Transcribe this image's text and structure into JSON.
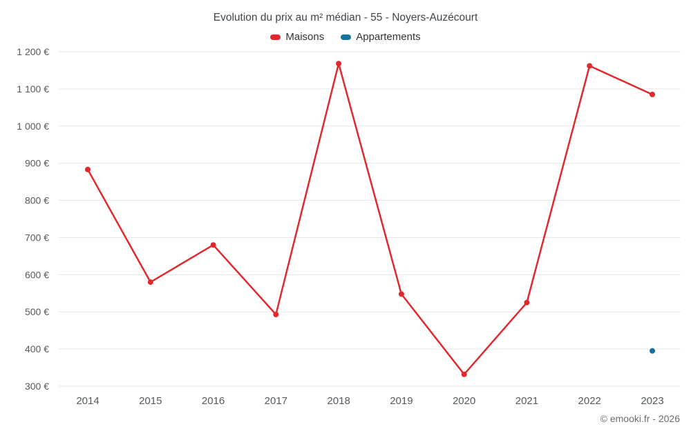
{
  "title": "Evolution du prix au m² médian - 55 - Noyers-Auzécourt",
  "footer": "© emooki.fr - 2026",
  "legend": [
    {
      "id": "maisons",
      "label": "Maisons",
      "color": "#e0282e"
    },
    {
      "id": "appartements",
      "label": "Appartements",
      "color": "#16739c"
    }
  ],
  "chart_data": {
    "type": "line",
    "categories": [
      "2014",
      "2015",
      "2016",
      "2017",
      "2018",
      "2019",
      "2020",
      "2021",
      "2022",
      "2023"
    ],
    "series": [
      {
        "name": "Maisons",
        "color": "#e0282e",
        "values": [
          883,
          580,
          680,
          493,
          1168,
          548,
          332,
          525,
          1162,
          1085
        ]
      },
      {
        "name": "Appartements",
        "color": "#16739c",
        "values": [
          null,
          null,
          null,
          null,
          null,
          null,
          null,
          null,
          null,
          395
        ]
      }
    ],
    "ylim": [
      300,
      1200
    ],
    "ytick_step": 100,
    "y_suffix": " €",
    "grid": "horizontal-only",
    "legend_position": "top",
    "axis_label_color": "#54595d",
    "grid_color": "#e6e6e6"
  }
}
